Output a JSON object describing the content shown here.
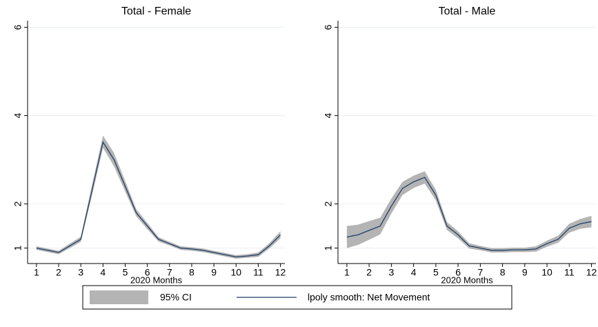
{
  "chart_data": [
    {
      "type": "line",
      "title": "Total - Female",
      "xlabel": "2020 Months",
      "x": [
        1,
        1.5,
        2,
        2.5,
        3,
        3.5,
        4,
        4.5,
        5,
        5.5,
        6,
        6.5,
        7,
        7.5,
        8,
        8.5,
        9,
        9.5,
        10,
        10.5,
        11,
        11.5,
        12
      ],
      "band": {
        "color": "#b4b4b4",
        "lower": [
          0.96,
          0.91,
          0.86,
          1.0,
          1.14,
          2.18,
          3.27,
          2.85,
          2.28,
          1.72,
          1.43,
          1.15,
          1.06,
          0.96,
          0.94,
          0.91,
          0.86,
          0.81,
          0.76,
          0.78,
          0.8,
          0.99,
          1.22
        ],
        "upper": [
          1.04,
          0.99,
          0.94,
          1.1,
          1.26,
          2.42,
          3.55,
          3.15,
          2.52,
          1.88,
          1.57,
          1.25,
          1.14,
          1.04,
          1.02,
          0.99,
          0.94,
          0.89,
          0.84,
          0.86,
          0.9,
          1.11,
          1.38
        ]
      },
      "line": {
        "color": "#1f3f66",
        "values": [
          1.0,
          0.95,
          0.9,
          1.05,
          1.2,
          2.3,
          3.4,
          3.0,
          2.4,
          1.8,
          1.5,
          1.2,
          1.1,
          1.0,
          0.98,
          0.95,
          0.9,
          0.85,
          0.8,
          0.82,
          0.85,
          1.05,
          1.3
        ]
      },
      "xlim": [
        0.6,
        12.2
      ],
      "ylim": [
        0.65,
        6.15
      ],
      "xticks": [
        1,
        2,
        3,
        4,
        5,
        6,
        7,
        8,
        9,
        10,
        11,
        12
      ],
      "yticks": [
        1,
        2,
        4,
        6
      ],
      "grid": true
    },
    {
      "type": "line",
      "title": "Total - Male",
      "xlabel": "2020 Months",
      "x": [
        1,
        1.5,
        2,
        2.5,
        3,
        3.5,
        4,
        4.5,
        5,
        5.5,
        6,
        6.5,
        7,
        7.5,
        8,
        8.5,
        9,
        9.5,
        10,
        10.5,
        11,
        11.5,
        12
      ],
      "band": {
        "color": "#b4b4b4",
        "lower": [
          1.0,
          1.07,
          1.19,
          1.31,
          1.78,
          2.2,
          2.36,
          2.46,
          2.08,
          1.41,
          1.22,
          0.99,
          0.95,
          0.9,
          0.9,
          0.91,
          0.91,
          0.92,
          1.03,
          1.12,
          1.35,
          1.44,
          1.47
        ],
        "upper": [
          1.5,
          1.53,
          1.61,
          1.69,
          2.12,
          2.5,
          2.64,
          2.74,
          2.32,
          1.59,
          1.38,
          1.11,
          1.05,
          1.0,
          1.0,
          1.01,
          1.01,
          1.04,
          1.17,
          1.28,
          1.55,
          1.66,
          1.73
        ]
      },
      "line": {
        "color": "#1f3f66",
        "values": [
          1.25,
          1.3,
          1.4,
          1.5,
          1.95,
          2.35,
          2.5,
          2.6,
          2.2,
          1.5,
          1.3,
          1.05,
          1.0,
          0.95,
          0.95,
          0.96,
          0.96,
          0.98,
          1.1,
          1.2,
          1.45,
          1.55,
          1.6
        ]
      },
      "xlim": [
        0.6,
        12.2
      ],
      "ylim": [
        0.65,
        6.15
      ],
      "xticks": [
        1,
        2,
        3,
        4,
        5,
        6,
        7,
        8,
        9,
        10,
        11,
        12
      ],
      "yticks": [
        1,
        2,
        4,
        6
      ],
      "grid": true
    }
  ],
  "legend": [
    "95% CI",
    "lpoly smooth: Net Movement"
  ]
}
